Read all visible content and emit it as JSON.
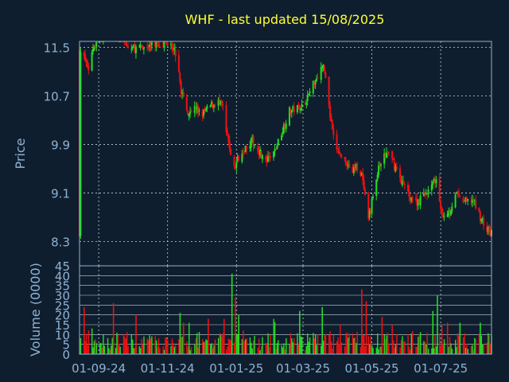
{
  "chart_data": [
    {
      "type": "candlestick",
      "title": "WHF - last updated 15/08/2025",
      "ylabel": "Price",
      "ylim": [
        7.9,
        11.6
      ],
      "yticks": [
        "11.5",
        "10.7",
        "9.9",
        "9.1",
        "8.3"
      ],
      "xticks": [
        "01-09-24",
        "01-11-24",
        "01-01-25",
        "01-03-25",
        "01-05-25",
        "01-07-25"
      ],
      "grid": true,
      "colors": {
        "up": "#22dd22",
        "down": "#ee1111",
        "grid": "#c8d4e0",
        "frame": "#8fb2d4",
        "background": "#0f1e2e"
      },
      "x_range": [
        "2024-08-15",
        "2025-08-15"
      ],
      "closes": [
        [
          "2024-08-16",
          11.45
        ],
        [
          "2024-08-23",
          11.15
        ],
        [
          "2024-08-27",
          11.5
        ],
        [
          "2024-09-03",
          11.7
        ],
        [
          "2024-09-13",
          11.8
        ],
        [
          "2024-09-27",
          11.5
        ],
        [
          "2024-10-07",
          11.48
        ],
        [
          "2024-10-21",
          11.55
        ],
        [
          "2024-11-04",
          11.6
        ],
        [
          "2024-11-08",
          11.4
        ],
        [
          "2024-11-13",
          10.8
        ],
        [
          "2024-11-18",
          10.45
        ],
        [
          "2024-11-25",
          10.5
        ],
        [
          "2024-12-02",
          10.4
        ],
        [
          "2024-12-10",
          10.55
        ],
        [
          "2024-12-16",
          10.6
        ],
        [
          "2024-12-20",
          10.5
        ],
        [
          "2024-12-23",
          10.1
        ],
        [
          "2024-12-26",
          9.85
        ],
        [
          "2024-12-30",
          9.5
        ],
        [
          "2025-01-03",
          9.7
        ],
        [
          "2025-01-09",
          9.85
        ],
        [
          "2025-01-15",
          9.95
        ],
        [
          "2025-01-21",
          9.8
        ],
        [
          "2025-01-27",
          9.6
        ],
        [
          "2025-02-03",
          9.75
        ],
        [
          "2025-02-10",
          10.1
        ],
        [
          "2025-02-17",
          10.45
        ],
        [
          "2025-02-24",
          10.5
        ],
        [
          "2025-03-03",
          10.6
        ],
        [
          "2025-03-10",
          10.9
        ],
        [
          "2025-03-14",
          11.05
        ],
        [
          "2025-03-18",
          11.2
        ],
        [
          "2025-03-21",
          11.05
        ],
        [
          "2025-03-25",
          10.35
        ],
        [
          "2025-03-28",
          10.0
        ],
        [
          "2025-04-01",
          9.8
        ],
        [
          "2025-04-04",
          9.7
        ],
        [
          "2025-04-09",
          9.6
        ],
        [
          "2025-04-14",
          9.45
        ],
        [
          "2025-04-17",
          9.55
        ],
        [
          "2025-04-22",
          9.4
        ],
        [
          "2025-04-25",
          9.0
        ],
        [
          "2025-04-28",
          8.65
        ],
        [
          "2025-05-02",
          9.05
        ],
        [
          "2025-05-07",
          9.5
        ],
        [
          "2025-05-12",
          9.7
        ],
        [
          "2025-05-16",
          9.75
        ],
        [
          "2025-05-20",
          9.6
        ],
        [
          "2025-05-26",
          9.35
        ],
        [
          "2025-05-30",
          9.2
        ],
        [
          "2025-06-04",
          9.05
        ],
        [
          "2025-06-09",
          8.95
        ],
        [
          "2025-06-13",
          9.0
        ],
        [
          "2025-06-18",
          9.1
        ],
        [
          "2025-06-23",
          9.2
        ],
        [
          "2025-06-27",
          9.35
        ],
        [
          "2025-06-30",
          8.9
        ],
        [
          "2025-07-03",
          8.75
        ],
        [
          "2025-07-09",
          8.8
        ],
        [
          "2025-07-14",
          9.1
        ],
        [
          "2025-07-18",
          9.0
        ],
        [
          "2025-07-24",
          8.95
        ],
        [
          "2025-07-29",
          9.0
        ],
        [
          "2025-08-04",
          8.75
        ],
        [
          "2025-08-08",
          8.6
        ],
        [
          "2025-08-13",
          8.45
        ],
        [
          "2025-08-15",
          8.45
        ]
      ]
    },
    {
      "type": "bar",
      "ylabel": "Volume (0000)",
      "ylim": [
        0,
        45
      ],
      "yticks": [
        "45",
        "40",
        "35",
        "30",
        "25",
        "20",
        "15",
        "10",
        "5",
        "0"
      ],
      "xticks": [
        "01-09-24",
        "01-11-24",
        "01-01-25",
        "01-03-25",
        "01-05-25",
        "01-07-25"
      ],
      "grid": true,
      "spikes": [
        [
          "2024-08-19",
          24
        ],
        [
          "2024-09-14",
          26
        ],
        [
          "2024-10-04",
          20
        ],
        [
          "2024-11-12",
          21
        ],
        [
          "2024-11-15",
          16
        ],
        [
          "2024-12-07",
          18
        ],
        [
          "2024-12-21",
          18
        ],
        [
          "2024-12-28",
          41
        ],
        [
          "2024-12-31",
          29
        ],
        [
          "2025-01-03",
          20
        ],
        [
          "2025-02-26",
          22
        ],
        [
          "2025-03-18",
          24
        ],
        [
          "2025-04-22",
          33
        ],
        [
          "2025-04-26",
          27
        ],
        [
          "2025-05-10",
          19
        ],
        [
          "2025-06-24",
          22
        ],
        [
          "2025-06-28",
          30
        ],
        [
          "2025-07-07",
          16
        ],
        [
          "2025-07-18",
          16
        ],
        [
          "2025-08-05",
          16
        ]
      ]
    }
  ]
}
